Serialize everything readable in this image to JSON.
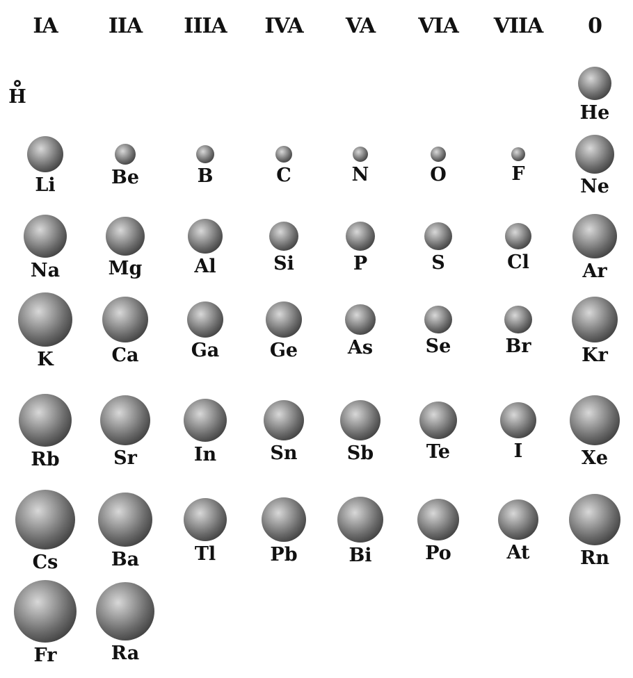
{
  "headers": [
    "IA",
    "IIA",
    "IIIA",
    "IVA",
    "VA",
    "VIA",
    "VIIA",
    "0"
  ],
  "ball_gradient": {
    "light": "#d8d8d8",
    "mid": "#6a6a6a",
    "dark": "#1a1a1a"
  },
  "rows": [
    [
      {
        "symbol": "H",
        "group": 0,
        "radius": 5
      },
      {
        "symbol": "He",
        "group": 7,
        "radius": 24
      }
    ],
    [
      {
        "symbol": "Li",
        "group": 0,
        "radius": 26
      },
      {
        "symbol": "Be",
        "group": 1,
        "radius": 15
      },
      {
        "symbol": "B",
        "group": 2,
        "radius": 13
      },
      {
        "symbol": "C",
        "group": 3,
        "radius": 12
      },
      {
        "symbol": "N",
        "group": 4,
        "radius": 11
      },
      {
        "symbol": "O",
        "group": 5,
        "radius": 11
      },
      {
        "symbol": "F",
        "group": 6,
        "radius": 10
      },
      {
        "symbol": "Ne",
        "group": 7,
        "radius": 28
      }
    ],
    [
      {
        "symbol": "Na",
        "group": 0,
        "radius": 31
      },
      {
        "symbol": "Mg",
        "group": 1,
        "radius": 28
      },
      {
        "symbol": "Al",
        "group": 2,
        "radius": 25
      },
      {
        "symbol": "Si",
        "group": 3,
        "radius": 21
      },
      {
        "symbol": "P",
        "group": 4,
        "radius": 21
      },
      {
        "symbol": "S",
        "group": 5,
        "radius": 20
      },
      {
        "symbol": "Cl",
        "group": 6,
        "radius": 19
      },
      {
        "symbol": "Ar",
        "group": 7,
        "radius": 32
      }
    ],
    [
      {
        "symbol": "K",
        "group": 0,
        "radius": 39
      },
      {
        "symbol": "Ca",
        "group": 1,
        "radius": 33
      },
      {
        "symbol": "Ga",
        "group": 2,
        "radius": 26
      },
      {
        "symbol": "Ge",
        "group": 3,
        "radius": 26
      },
      {
        "symbol": "As",
        "group": 4,
        "radius": 22
      },
      {
        "symbol": "Se",
        "group": 5,
        "radius": 20
      },
      {
        "symbol": "Br",
        "group": 6,
        "radius": 20
      },
      {
        "symbol": "Kr",
        "group": 7,
        "radius": 33
      }
    ],
    [
      {
        "symbol": "Rb",
        "group": 0,
        "radius": 38
      },
      {
        "symbol": "Sr",
        "group": 1,
        "radius": 36
      },
      {
        "symbol": "In",
        "group": 2,
        "radius": 31
      },
      {
        "symbol": "Sn",
        "group": 3,
        "radius": 29
      },
      {
        "symbol": "Sb",
        "group": 4,
        "radius": 29
      },
      {
        "symbol": "Te",
        "group": 5,
        "radius": 27
      },
      {
        "symbol": "I",
        "group": 6,
        "radius": 26
      },
      {
        "symbol": "Xe",
        "group": 7,
        "radius": 36
      }
    ],
    [
      {
        "symbol": "Cs",
        "group": 0,
        "radius": 43
      },
      {
        "symbol": "Ba",
        "group": 1,
        "radius": 39
      },
      {
        "symbol": "Tl",
        "group": 2,
        "radius": 31
      },
      {
        "symbol": "Pb",
        "group": 3,
        "radius": 32
      },
      {
        "symbol": "Bi",
        "group": 4,
        "radius": 33
      },
      {
        "symbol": "Po",
        "group": 5,
        "radius": 30
      },
      {
        "symbol": "At",
        "group": 6,
        "radius": 29
      },
      {
        "symbol": "Rn",
        "group": 7,
        "radius": 37
      }
    ],
    [
      {
        "symbol": "Fr",
        "group": 0,
        "radius": 45
      },
      {
        "symbol": "Ra",
        "group": 1,
        "radius": 42
      }
    ]
  ]
}
